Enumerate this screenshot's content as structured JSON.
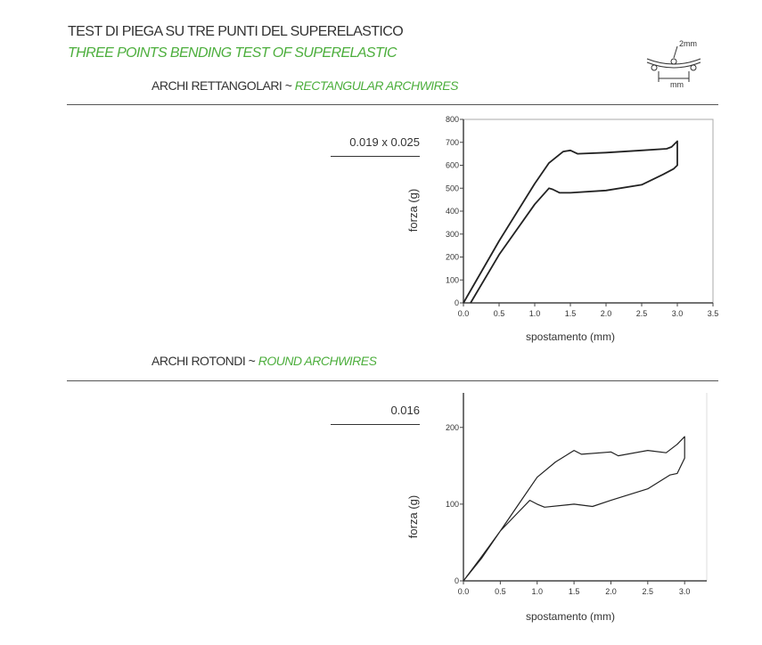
{
  "header": {
    "title": "TEST DI PIEGA SU TRE PUNTI DEL SUPERELASTICO",
    "subtitle": "THREE POINTS BENDING TEST OF SUPERELASTIC",
    "diagram": {
      "top_label": "2mm",
      "bottom_label": "mm"
    }
  },
  "colors": {
    "accent": "#4cae3c",
    "text": "#333333",
    "curve": "#222222"
  },
  "sections": [
    {
      "title_it": "ARCHI RETTANGOLARI ~ ",
      "title_en": "RECTANGULAR ARCHWIRES",
      "wire_size": "0.019 x 0.025"
    },
    {
      "title_it": "ARCHI ROTONDI ~ ",
      "title_en": "ROUND ARCHWIRES",
      "wire_size": "0.016"
    }
  ],
  "chart_data": [
    {
      "type": "line",
      "xlabel": "spostamento (mm)",
      "ylabel": "forza (g)",
      "xlim": [
        0,
        3.5
      ],
      "ylim": [
        0,
        800
      ],
      "xticks": [
        "0.0",
        "0.5",
        "1.0",
        "1.5",
        "2.0",
        "2.5",
        "3.0",
        "3.5"
      ],
      "yticks": [
        "0",
        "100",
        "200",
        "300",
        "400",
        "500",
        "600",
        "700",
        "800"
      ],
      "series": [
        {
          "x": [
            0,
            0.5,
            1.0,
            1.2,
            1.4,
            1.5,
            1.6,
            2.0,
            2.5,
            2.85,
            2.92,
            3.0,
            3.0,
            2.95,
            2.8,
            2.5,
            2.0,
            1.5,
            1.35,
            1.25,
            1.2,
            1.0,
            0.5,
            0.1
          ],
          "y": [
            0,
            270,
            520,
            610,
            660,
            665,
            650,
            655,
            665,
            672,
            680,
            705,
            600,
            585,
            560,
            515,
            490,
            480,
            480,
            495,
            500,
            430,
            210,
            0
          ]
        }
      ]
    },
    {
      "type": "line",
      "xlabel": "spostamento (mm)",
      "ylabel": "forza (g)",
      "xlim": [
        0,
        3.3
      ],
      "ylim": [
        0,
        245
      ],
      "xticks": [
        "0.0",
        "0.5",
        "1.0",
        "1.5",
        "2.0",
        "2.5",
        "3.0"
      ],
      "yticks": [
        "0",
        "100",
        "200"
      ],
      "series": [
        {
          "x": [
            0,
            0.25,
            0.5,
            0.75,
            1.0,
            1.25,
            1.5,
            1.6,
            2.0,
            2.1,
            2.5,
            2.75,
            2.9,
            3.0,
            3.0,
            2.9,
            2.8,
            2.5,
            2.0,
            1.75,
            1.5,
            1.1,
            1.0,
            0.9,
            0.75,
            0.5,
            0.25,
            0
          ],
          "y": [
            0,
            30,
            65,
            100,
            135,
            155,
            170,
            165,
            168,
            163,
            170,
            167,
            178,
            188,
            160,
            140,
            138,
            120,
            105,
            97,
            100,
            96,
            100,
            105,
            90,
            65,
            32,
            0
          ]
        }
      ]
    }
  ]
}
